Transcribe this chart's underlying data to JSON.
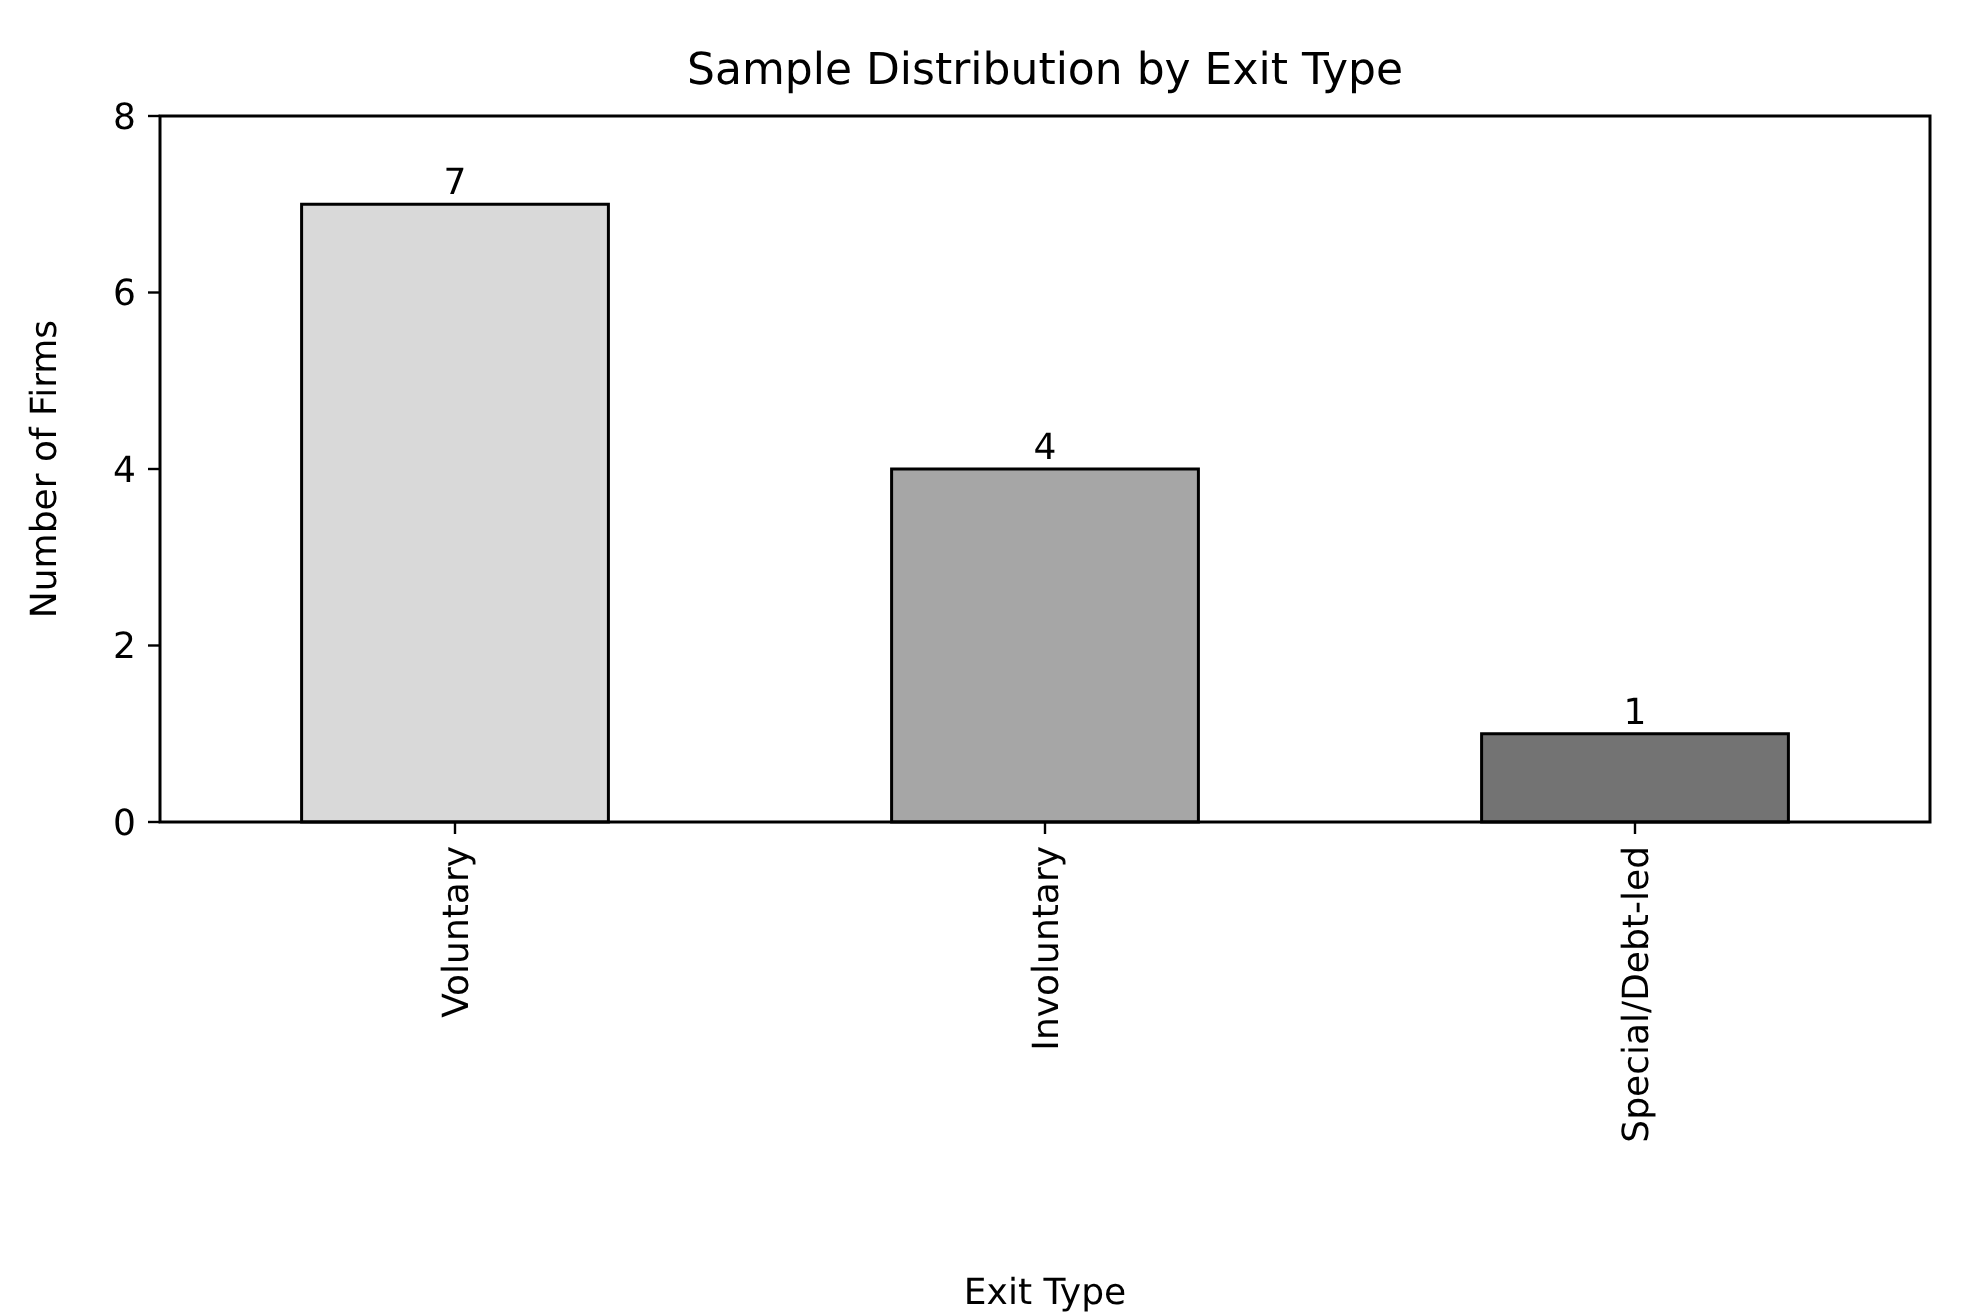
{
  "chart_data": {
    "type": "bar",
    "title": "Sample Distribution by Exit Type",
    "xlabel": "Exit Type",
    "ylabel": "Number of Firms",
    "categories": [
      "Voluntary",
      "Involuntary",
      "Special/Debt-led"
    ],
    "values": [
      7,
      4,
      1
    ],
    "colors": [
      "#d9d9d9",
      "#a6a6a6",
      "#737373"
    ],
    "ylim": [
      0,
      8
    ],
    "yticks": [
      0,
      2,
      4,
      6,
      8
    ],
    "grid": false,
    "data_labels": true
  }
}
